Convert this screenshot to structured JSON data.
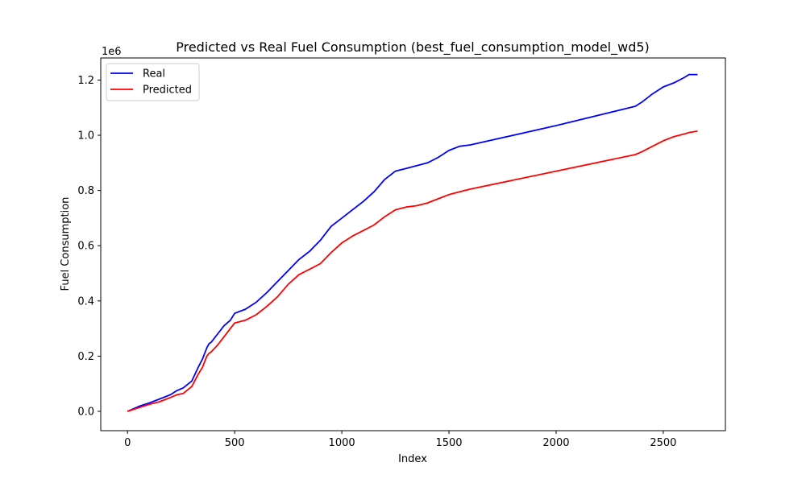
{
  "chart_data": {
    "type": "line",
    "title": "Predicted vs Real Fuel Consumption (best_fuel_consumption_model_wd5)",
    "xlabel": "Index",
    "ylabel": "Fuel Consumption",
    "y_offset_label": "1e6",
    "xlim": [
      -125,
      2790
    ],
    "ylim": [
      -0.07,
      1.28
    ],
    "x_ticks": [
      0,
      500,
      1000,
      1500,
      2000,
      2500
    ],
    "x_tick_labels": [
      "0",
      "500",
      "1000",
      "1500",
      "2000",
      "2500"
    ],
    "y_ticks": [
      0.0,
      0.2,
      0.4,
      0.6,
      0.8,
      1.0,
      1.2
    ],
    "y_tick_labels": [
      "0.0",
      "0.2",
      "0.4",
      "0.6",
      "0.8",
      "1.0",
      "1.2"
    ],
    "grid": false,
    "legend_position": "top-left",
    "series": [
      {
        "name": "Real",
        "color": "#0000ff",
        "x": [
          0,
          60,
          100,
          150,
          200,
          230,
          260,
          300,
          330,
          350,
          370,
          380,
          390,
          420,
          450,
          480,
          500,
          550,
          600,
          650,
          700,
          750,
          800,
          850,
          900,
          950,
          1000,
          1050,
          1100,
          1150,
          1200,
          1250,
          1300,
          1350,
          1400,
          1450,
          1500,
          1550,
          1600,
          2000,
          2370,
          2400,
          2450,
          2500,
          2550,
          2600,
          2620,
          2660
        ],
        "y": [
          0.0,
          0.02,
          0.03,
          0.045,
          0.06,
          0.075,
          0.085,
          0.11,
          0.16,
          0.19,
          0.23,
          0.245,
          0.25,
          0.28,
          0.31,
          0.33,
          0.355,
          0.37,
          0.395,
          0.43,
          0.47,
          0.51,
          0.55,
          0.58,
          0.62,
          0.67,
          0.7,
          0.73,
          0.76,
          0.795,
          0.84,
          0.87,
          0.88,
          0.89,
          0.9,
          0.92,
          0.945,
          0.96,
          0.965,
          1.035,
          1.105,
          1.12,
          1.15,
          1.175,
          1.19,
          1.21,
          1.22,
          1.22
        ]
      },
      {
        "name": "Predicted",
        "color": "#ff0000",
        "x": [
          0,
          60,
          100,
          150,
          200,
          230,
          260,
          300,
          330,
          350,
          370,
          380,
          390,
          420,
          450,
          480,
          500,
          550,
          600,
          650,
          700,
          750,
          800,
          850,
          900,
          950,
          1000,
          1050,
          1100,
          1150,
          1200,
          1250,
          1300,
          1350,
          1400,
          1450,
          1500,
          1550,
          1600,
          2000,
          2370,
          2400,
          2450,
          2500,
          2550,
          2600,
          2620,
          2660
        ],
        "y": [
          0.0,
          0.015,
          0.025,
          0.035,
          0.05,
          0.06,
          0.065,
          0.09,
          0.135,
          0.16,
          0.2,
          0.21,
          0.215,
          0.24,
          0.27,
          0.3,
          0.32,
          0.33,
          0.35,
          0.38,
          0.415,
          0.46,
          0.495,
          0.515,
          0.535,
          0.575,
          0.61,
          0.635,
          0.655,
          0.675,
          0.705,
          0.73,
          0.74,
          0.745,
          0.755,
          0.77,
          0.785,
          0.795,
          0.805,
          0.87,
          0.93,
          0.94,
          0.96,
          0.98,
          0.995,
          1.005,
          1.01,
          1.015
        ]
      }
    ]
  }
}
